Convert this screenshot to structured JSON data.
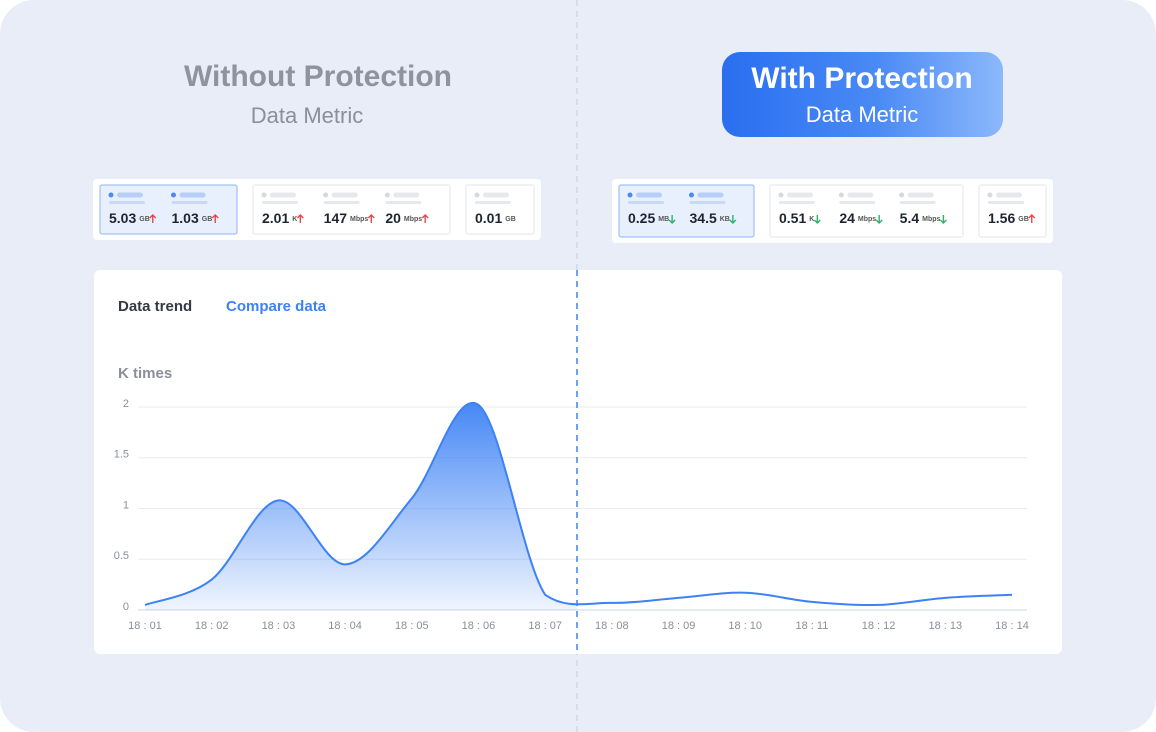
{
  "panels": [
    {
      "title": "Without Protection",
      "subtitle": "Data Metric",
      "groups": [
        [
          {
            "value": 5.03,
            "unit": "GB",
            "direction": "up"
          },
          {
            "value": 1.03,
            "unit": "GB",
            "direction": "up"
          }
        ],
        [
          {
            "value": 2.01,
            "unit": "K",
            "direction": "up"
          },
          {
            "value": 147,
            "unit": "Mbps",
            "direction": "up"
          },
          {
            "value": 20,
            "unit": "Mbps",
            "direction": "up"
          }
        ],
        [
          {
            "value": 0.01,
            "unit": "GB"
          }
        ]
      ]
    },
    {
      "title": "With Protection",
      "subtitle": "Data Metric",
      "groups": [
        [
          {
            "value": 0.25,
            "unit": "MB",
            "direction": "down"
          },
          {
            "value": 34.5,
            "unit": "KB",
            "direction": "down"
          }
        ],
        [
          {
            "value": 0.51,
            "unit": "K",
            "direction": "down"
          },
          {
            "value": 24,
            "unit": "Mbps",
            "direction": "down"
          },
          {
            "value": 5.4,
            "unit": "Mbps",
            "direction": "down"
          }
        ],
        [
          {
            "value": 1.56,
            "unit": "GB",
            "direction": "up"
          }
        ]
      ]
    }
  ],
  "tabs": [
    "Data trend",
    "Compare data"
  ],
  "chart_data": {
    "type": "area",
    "ylabel": "K times",
    "categories": [
      "18 : 01",
      "18 : 02",
      "18 : 03",
      "18 : 04",
      "18 : 05",
      "18 : 06",
      "18 : 07",
      "18 : 08",
      "18 : 09",
      "18 : 10",
      "18 : 11",
      "18 : 12",
      "18 : 13",
      "18 : 14"
    ],
    "values": [
      0.05,
      0.3,
      1.08,
      0.45,
      1.1,
      2.02,
      0.15,
      0.07,
      0.12,
      0.17,
      0.08,
      0.05,
      0.12,
      0.15
    ],
    "color": "#3d82f5",
    "ylim": [
      0,
      2
    ],
    "yticks": [
      0,
      0.5,
      1,
      1.5,
      2
    ],
    "grid": true
  }
}
